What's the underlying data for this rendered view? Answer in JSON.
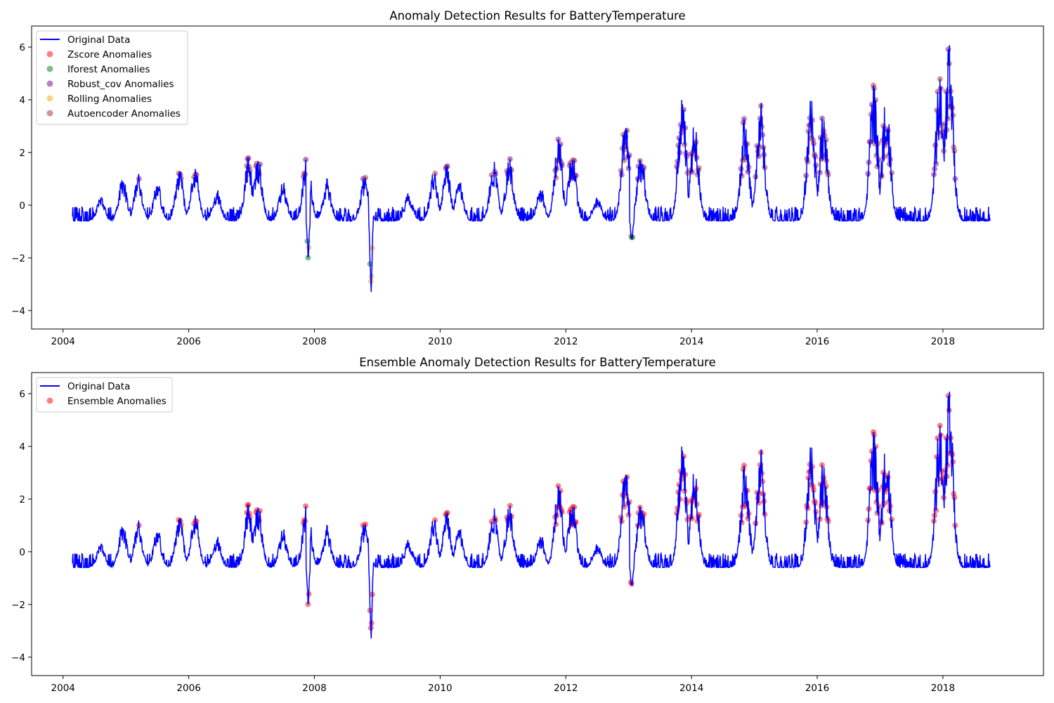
{
  "chart_data": [
    {
      "type": "line",
      "title": "Anomaly Detection Results for BatteryTemperature",
      "xlabel": "",
      "ylabel": "",
      "xlim": [
        2003.5,
        2019.6
      ],
      "ylim": [
        -4.7,
        6.8
      ],
      "xticks": [
        2004,
        2006,
        2008,
        2010,
        2012,
        2014,
        2016,
        2018
      ],
      "yticks": [
        -4,
        -2,
        0,
        2,
        4,
        6
      ],
      "grid": false,
      "legend_position": "upper-left",
      "series": [
        {
          "name": "Original Data",
          "kind": "line",
          "color": "#0000ff"
        },
        {
          "name": "Zscore Anomalies",
          "kind": "scatter",
          "color": "#ff0000",
          "alpha": 0.5
        },
        {
          "name": "Iforest Anomalies",
          "kind": "scatter",
          "color": "#008000",
          "alpha": 0.5
        },
        {
          "name": "Robust_cov Anomalies",
          "kind": "scatter",
          "color": "#800080",
          "alpha": 0.5
        },
        {
          "name": "Rolling Anomalies",
          "kind": "scatter",
          "color": "#ffa500",
          "alpha": 0.5
        },
        {
          "name": "Autoencoder Anomalies",
          "kind": "scatter",
          "color": "#a52a2a",
          "alpha": 0.5
        }
      ]
    },
    {
      "type": "line",
      "title": "Ensemble Anomaly Detection Results for BatteryTemperature",
      "xlabel": "",
      "ylabel": "",
      "xlim": [
        2003.5,
        2019.6
      ],
      "ylim": [
        -4.7,
        6.8
      ],
      "xticks": [
        2004,
        2006,
        2008,
        2010,
        2012,
        2014,
        2016,
        2018
      ],
      "yticks": [
        -4,
        -2,
        0,
        2,
        4,
        6
      ],
      "grid": false,
      "legend_position": "upper-left",
      "series": [
        {
          "name": "Original Data",
          "kind": "line",
          "color": "#0000ff"
        },
        {
          "name": "Ensemble Anomalies",
          "kind": "scatter",
          "color": "#ff0000",
          "alpha": 0.5
        }
      ]
    }
  ],
  "shared_series": {
    "x_range": [
      2004.15,
      2018.75
    ],
    "baseline": -0.6,
    "noise_amplitude": 0.55,
    "peaks": [
      [
        2004.6,
        0.35
      ],
      [
        2004.95,
        1.1
      ],
      [
        2005.2,
        1.2
      ],
      [
        2005.5,
        0.9
      ],
      [
        2005.85,
        1.45
      ],
      [
        2006.1,
        1.5
      ],
      [
        2006.45,
        0.6
      ],
      [
        2006.95,
        1.85
      ],
      [
        2007.1,
        1.9
      ],
      [
        2007.5,
        0.9
      ],
      [
        2007.88,
        2.15
      ],
      [
        2008.2,
        1.0
      ],
      [
        2008.8,
        1.15
      ],
      [
        2009.5,
        0.5
      ],
      [
        2009.9,
        1.35
      ],
      [
        2010.1,
        1.6
      ],
      [
        2010.3,
        1.0
      ],
      [
        2010.85,
        1.7
      ],
      [
        2011.1,
        1.8
      ],
      [
        2011.6,
        0.7
      ],
      [
        2011.88,
        2.85
      ],
      [
        2012.1,
        2.1
      ],
      [
        2012.5,
        0.3
      ],
      [
        2012.95,
        3.75
      ],
      [
        2013.2,
        2.05
      ],
      [
        2013.85,
        4.4
      ],
      [
        2014.05,
        3.3
      ],
      [
        2014.85,
        3.5
      ],
      [
        2015.1,
        4.0
      ],
      [
        2015.9,
        4.15
      ],
      [
        2016.1,
        3.55
      ],
      [
        2016.9,
        4.7
      ],
      [
        2017.1,
        4.4
      ],
      [
        2017.95,
        5.1
      ],
      [
        2018.1,
        6.35
      ]
    ],
    "dips": [
      [
        2007.9,
        -2.0
      ],
      [
        2008.9,
        -4.2
      ],
      [
        2013.05,
        -1.55
      ]
    ]
  }
}
